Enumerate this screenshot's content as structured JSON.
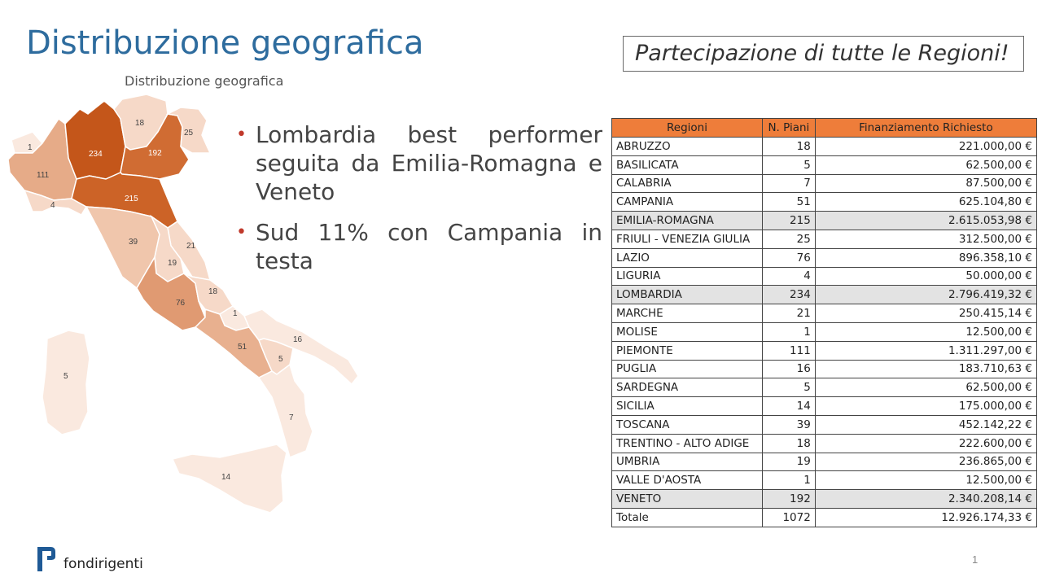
{
  "title": "Distribuzione geografica",
  "callout": "Partecipazione di tutte le Regioni!",
  "map": {
    "caption": "Distribuzione geografica",
    "labels": [
      {
        "region": "Valle d'Aosta",
        "value": "1"
      },
      {
        "region": "Piemonte",
        "value": "111"
      },
      {
        "region": "Liguria",
        "value": "4"
      },
      {
        "region": "Lombardia",
        "value": "234"
      },
      {
        "region": "Trentino - Alto Adige",
        "value": "18"
      },
      {
        "region": "Veneto",
        "value": "192"
      },
      {
        "region": "Friuli - Venezia Giulia",
        "value": "25"
      },
      {
        "region": "Emilia-Romagna",
        "value": "215"
      },
      {
        "region": "Toscana",
        "value": "39"
      },
      {
        "region": "Marche",
        "value": "21"
      },
      {
        "region": "Umbria",
        "value": "19"
      },
      {
        "region": "Abruzzo",
        "value": "18"
      },
      {
        "region": "Lazio",
        "value": "76"
      },
      {
        "region": "Molise",
        "value": "1"
      },
      {
        "region": "Campania",
        "value": "51"
      },
      {
        "region": "Puglia",
        "value": "16"
      },
      {
        "region": "Basilicata",
        "value": "5"
      },
      {
        "region": "Calabria",
        "value": "7"
      },
      {
        "region": "Sardegna",
        "value": "5"
      },
      {
        "region": "Sicilia",
        "value": "14"
      }
    ]
  },
  "bullets": [
    "Lombardia best performer seguita da Emilia-Romagna e Veneto",
    "Sud 11% con Campania in testa"
  ],
  "table": {
    "headers": [
      "Regioni",
      "N. Piani",
      "Finanziamento Richiesto"
    ],
    "rows": [
      [
        "ABRUZZO",
        "18",
        "221.000,00 €"
      ],
      [
        "BASILICATA",
        "5",
        "62.500,00 €"
      ],
      [
        "CALABRIA",
        "7",
        "87.500,00 €"
      ],
      [
        "CAMPANIA",
        "51",
        "625.104,80 €"
      ],
      [
        "EMILIA-ROMAGNA",
        "215",
        "2.615.053,98 €"
      ],
      [
        "FRIULI - VENEZIA GIULIA",
        "25",
        "312.500,00 €"
      ],
      [
        "LAZIO",
        "76",
        "896.358,10 €"
      ],
      [
        "LIGURIA",
        "4",
        "50.000,00 €"
      ],
      [
        "LOMBARDIA",
        "234",
        "2.796.419,32 €"
      ],
      [
        "MARCHE",
        "21",
        "250.415,14 €"
      ],
      [
        "MOLISE",
        "1",
        "12.500,00 €"
      ],
      [
        "PIEMONTE",
        "111",
        "1.311.297,00 €"
      ],
      [
        "PUGLIA",
        "16",
        "183.710,63 €"
      ],
      [
        "SARDEGNA",
        "5",
        "62.500,00 €"
      ],
      [
        "SICILIA",
        "14",
        "175.000,00 €"
      ],
      [
        "TOSCANA",
        "39",
        "452.142,22 €"
      ],
      [
        "TRENTINO - ALTO ADIGE",
        "18",
        "222.600,00 €"
      ],
      [
        "UMBRIA",
        "19",
        "236.865,00 €"
      ],
      [
        "VALLE D'AOSTA",
        "1",
        "12.500,00 €"
      ],
      [
        "VENETO",
        "192",
        "2.340.208,14 €"
      ]
    ],
    "highlighted_rows": [
      4,
      8,
      19
    ],
    "total": [
      "Totale",
      "1072",
      "12.926.174,33 €"
    ]
  },
  "colors": {
    "title": "#2e6c9e",
    "table_header": "#ee7d3a",
    "highlight_row": "#e3e3e3",
    "map_dark": "#c4561a",
    "map_mid": "#e09a72",
    "map_light": "#f6d9c8",
    "map_lightest": "#fae9df"
  },
  "logo": {
    "text": "fondirigenti"
  },
  "page_number": "1"
}
